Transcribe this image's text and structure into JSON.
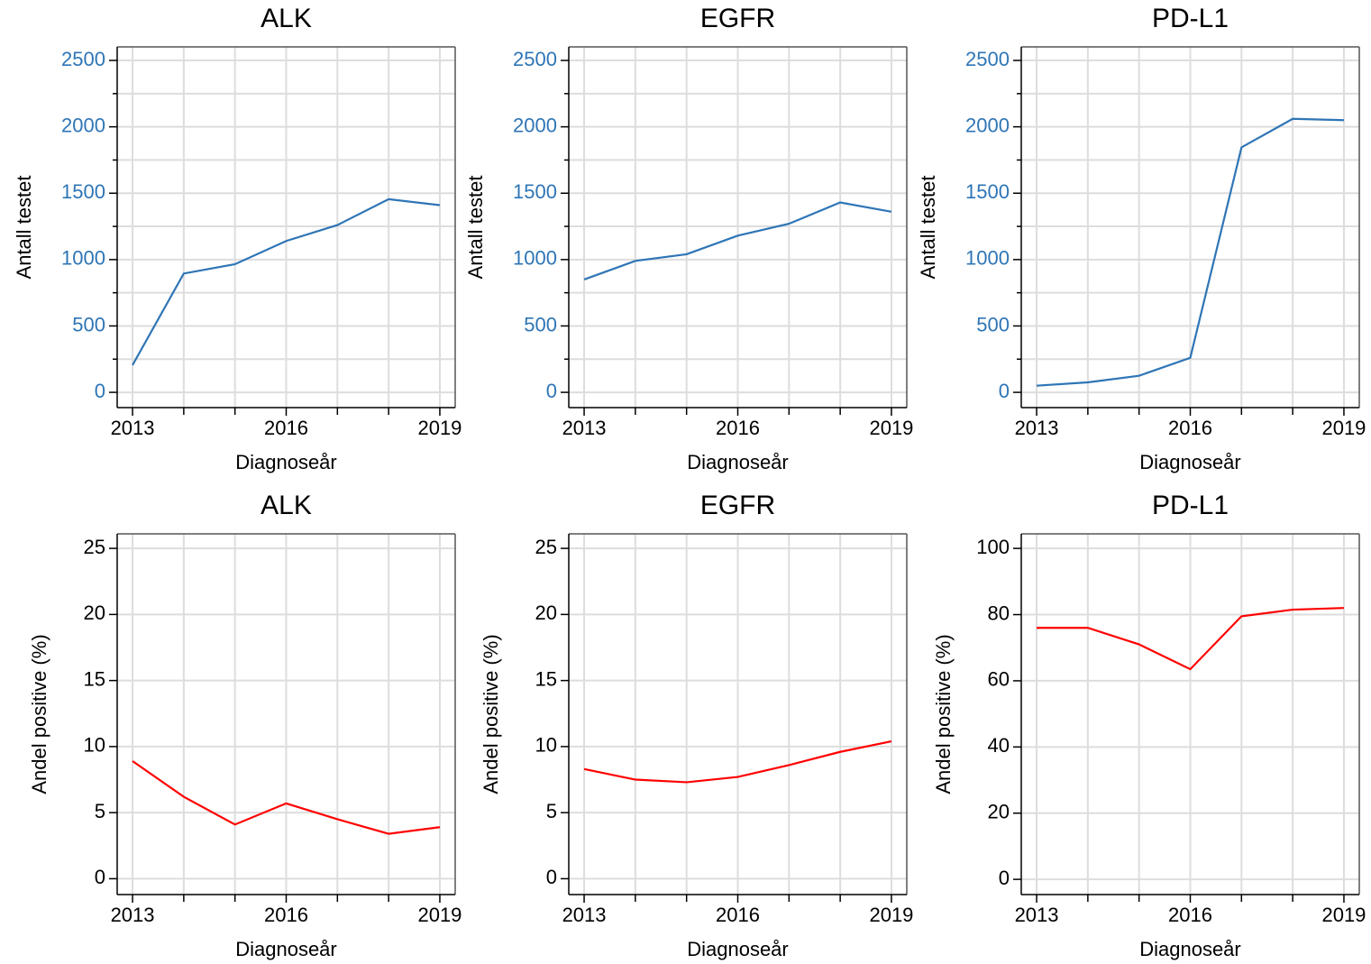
{
  "chart_data": [
    {
      "type": "line",
      "title": "ALK",
      "xlabel": "Diagnoseår",
      "ylabel": "Antall testet",
      "x": [
        2013,
        2014,
        2015,
        2016,
        2017,
        2018,
        2019
      ],
      "values": [
        205,
        895,
        965,
        1140,
        1260,
        1455,
        1410
      ],
      "color": "#2e75b6",
      "xlim": [
        2012.7,
        2019.3
      ],
      "xticks": [
        2013,
        2016,
        2019
      ],
      "xminor": [
        2014,
        2015,
        2017,
        2018
      ],
      "ylim": [
        -115,
        2602
      ],
      "yticks": [
        0,
        500,
        1000,
        1500,
        2000,
        2500
      ],
      "yminor": [
        250,
        750,
        1250,
        1750,
        2250
      ],
      "ytick_color": "#2e75b6",
      "grid": true
    },
    {
      "type": "line",
      "title": "EGFR",
      "xlabel": "Diagnoseår",
      "ylabel": "Antall testet",
      "x": [
        2013,
        2014,
        2015,
        2016,
        2017,
        2018,
        2019
      ],
      "values": [
        850,
        990,
        1040,
        1180,
        1270,
        1430,
        1360
      ],
      "color": "#2e75b6",
      "xlim": [
        2012.7,
        2019.3
      ],
      "xticks": [
        2013,
        2016,
        2019
      ],
      "xminor": [
        2014,
        2015,
        2017,
        2018
      ],
      "ylim": [
        -115,
        2602
      ],
      "yticks": [
        0,
        500,
        1000,
        1500,
        2000,
        2500
      ],
      "yminor": [
        250,
        750,
        1250,
        1750,
        2250
      ],
      "ytick_color": "#2e75b6",
      "grid": true
    },
    {
      "type": "line",
      "title": "PD-L1",
      "xlabel": "Diagnoseår",
      "ylabel": "Antall testet",
      "x": [
        2013,
        2014,
        2015,
        2016,
        2017,
        2018,
        2019
      ],
      "values": [
        50,
        75,
        125,
        260,
        1845,
        2060,
        2050
      ],
      "color": "#2e75b6",
      "xlim": [
        2012.7,
        2019.3
      ],
      "xticks": [
        2013,
        2016,
        2019
      ],
      "xminor": [
        2014,
        2015,
        2017,
        2018
      ],
      "ylim": [
        -115,
        2602
      ],
      "yticks": [
        0,
        500,
        1000,
        1500,
        2000,
        2500
      ],
      "yminor": [
        250,
        750,
        1250,
        1750,
        2250
      ],
      "ytick_color": "#2e75b6",
      "grid": true
    },
    {
      "type": "line",
      "title": "ALK",
      "xlabel": "Diagnoseår",
      "ylabel": "Andel positive (%)",
      "x": [
        2013,
        2014,
        2015,
        2016,
        2017,
        2018,
        2019
      ],
      "values": [
        8.9,
        6.2,
        4.1,
        5.7,
        4.5,
        3.4,
        3.9
      ],
      "color": "#ff0000",
      "xlim": [
        2012.7,
        2019.3
      ],
      "xticks": [
        2013,
        2016,
        2019
      ],
      "xminor": [
        2014,
        2015,
        2017,
        2018
      ],
      "ylim": [
        -1.2,
        26.1
      ],
      "yticks": [
        0,
        5,
        10,
        15,
        20,
        25
      ],
      "ytick_color": "#000000",
      "grid": true
    },
    {
      "type": "line",
      "title": "EGFR",
      "xlabel": "Diagnoseår",
      "ylabel": "Andel positive (%)",
      "x": [
        2013,
        2014,
        2015,
        2016,
        2017,
        2018,
        2019
      ],
      "values": [
        8.3,
        7.5,
        7.3,
        7.7,
        8.6,
        9.6,
        10.4
      ],
      "color": "#ff0000",
      "xlim": [
        2012.7,
        2019.3
      ],
      "xticks": [
        2013,
        2016,
        2019
      ],
      "xminor": [
        2014,
        2015,
        2017,
        2018
      ],
      "ylim": [
        -1.2,
        26.1
      ],
      "yticks": [
        0,
        5,
        10,
        15,
        20,
        25
      ],
      "ytick_color": "#000000",
      "grid": true
    },
    {
      "type": "line",
      "title": "PD-L1",
      "xlabel": "Diagnoseår",
      "ylabel": "Andel positive (%)",
      "x": [
        2013,
        2014,
        2015,
        2016,
        2017,
        2018,
        2019
      ],
      "values": [
        76,
        76,
        71,
        63.5,
        79.5,
        81.5,
        82
      ],
      "color": "#ff0000",
      "xlim": [
        2012.7,
        2019.3
      ],
      "xticks": [
        2013,
        2016,
        2019
      ],
      "xminor": [
        2014,
        2015,
        2017,
        2018
      ],
      "ylim": [
        -4.6,
        104.4
      ],
      "yticks": [
        0,
        20,
        40,
        60,
        80,
        100
      ],
      "ytick_color": "#000000",
      "grid": true
    }
  ]
}
